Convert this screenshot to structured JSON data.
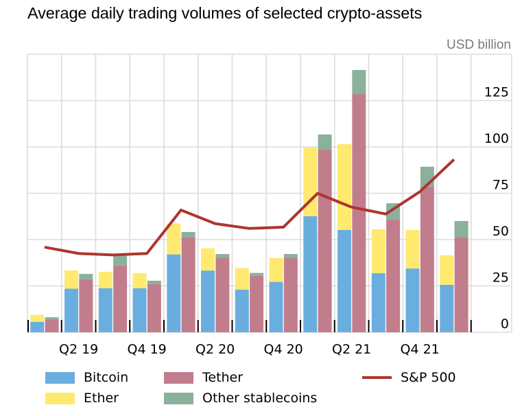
{
  "chart_data": {
    "type": "bar",
    "subtype": "stacked-grouped-bar-with-line",
    "title": "Average daily trading volumes of selected crypto-assets",
    "ylabel": "USD billion",
    "xlabel": "",
    "ylim": [
      0,
      150
    ],
    "yticks": [
      0,
      25,
      50,
      75,
      100,
      125
    ],
    "ytick_labels": [
      "0",
      "25",
      "50",
      "75",
      "100",
      "125"
    ],
    "grid": true,
    "legend_position": "bottom",
    "categories": [
      "Q1 19",
      "Q2 19",
      "Q3 19",
      "Q4 19",
      "Q1 20",
      "Q2 20",
      "Q3 20",
      "Q4 20",
      "Q1 21",
      "Q2 21",
      "Q3 21",
      "Q4 21",
      "Q1 22"
    ],
    "xtick_labels": [
      {
        "category": "Q2 19",
        "label": "Q2 19"
      },
      {
        "category": "Q4 19",
        "label": "Q4 19"
      },
      {
        "category": "Q2 20",
        "label": "Q2 20"
      },
      {
        "category": "Q4 20",
        "label": "Q4 20"
      },
      {
        "category": "Q2 21",
        "label": "Q2 21"
      },
      {
        "category": "Q4 21",
        "label": "Q4 21"
      }
    ],
    "stacks": [
      {
        "name": "bitcoin-ether",
        "series": [
          {
            "name": "Bitcoin",
            "color": "#6aaee0",
            "values": [
              5.6,
              23.5,
              23.7,
              23.7,
              42.0,
              33.3,
              23.0,
              27.2,
              62.6,
              55.2,
              31.9,
              34.4,
              25.6
            ]
          },
          {
            "name": "Ether",
            "color": "#ffe96f",
            "values": [
              3.8,
              9.9,
              8.9,
              8.2,
              16.6,
              12.0,
              11.6,
              12.9,
              37.0,
              46.3,
              23.7,
              20.8,
              15.9
            ]
          }
        ]
      },
      {
        "name": "stablecoins",
        "series": [
          {
            "name": "Tether",
            "color": "#c27d8d",
            "values": [
              7.0,
              28.6,
              36.0,
              26.0,
              51.1,
              40.0,
              30.4,
              40.0,
              98.5,
              128.5,
              60.7,
              78.6,
              51.1
            ]
          },
          {
            "name": "Other stablecoins",
            "color": "#8bb09b",
            "values": [
              1.1,
              2.9,
              5.4,
              1.8,
              3.0,
              2.2,
              1.6,
              2.2,
              8.2,
              13.0,
              8.9,
              10.7,
              8.9
            ]
          }
        ]
      }
    ],
    "line_series": {
      "name": "S&P 500",
      "color": "#ad3530",
      "values": [
        45.9,
        42.5,
        41.7,
        42.5,
        65.9,
        58.6,
        56.0,
        56.7,
        74.9,
        67.5,
        63.8,
        75.8,
        93.2
      ]
    },
    "legend": [
      {
        "name": "Bitcoin",
        "kind": "box",
        "color": "#6aaee0"
      },
      {
        "name": "Tether",
        "kind": "box",
        "color": "#c27d8d"
      },
      {
        "name": "S&P 500",
        "kind": "line",
        "color": "#ad3530"
      },
      {
        "name": "Ether",
        "kind": "box",
        "color": "#ffe96f"
      },
      {
        "name": "Other stablecoins",
        "kind": "box",
        "color": "#8bb09b"
      }
    ]
  },
  "colors": {
    "grid": "#dcdcdc",
    "unit_label": "#7a7a7a",
    "axis_tick": "#000000"
  }
}
